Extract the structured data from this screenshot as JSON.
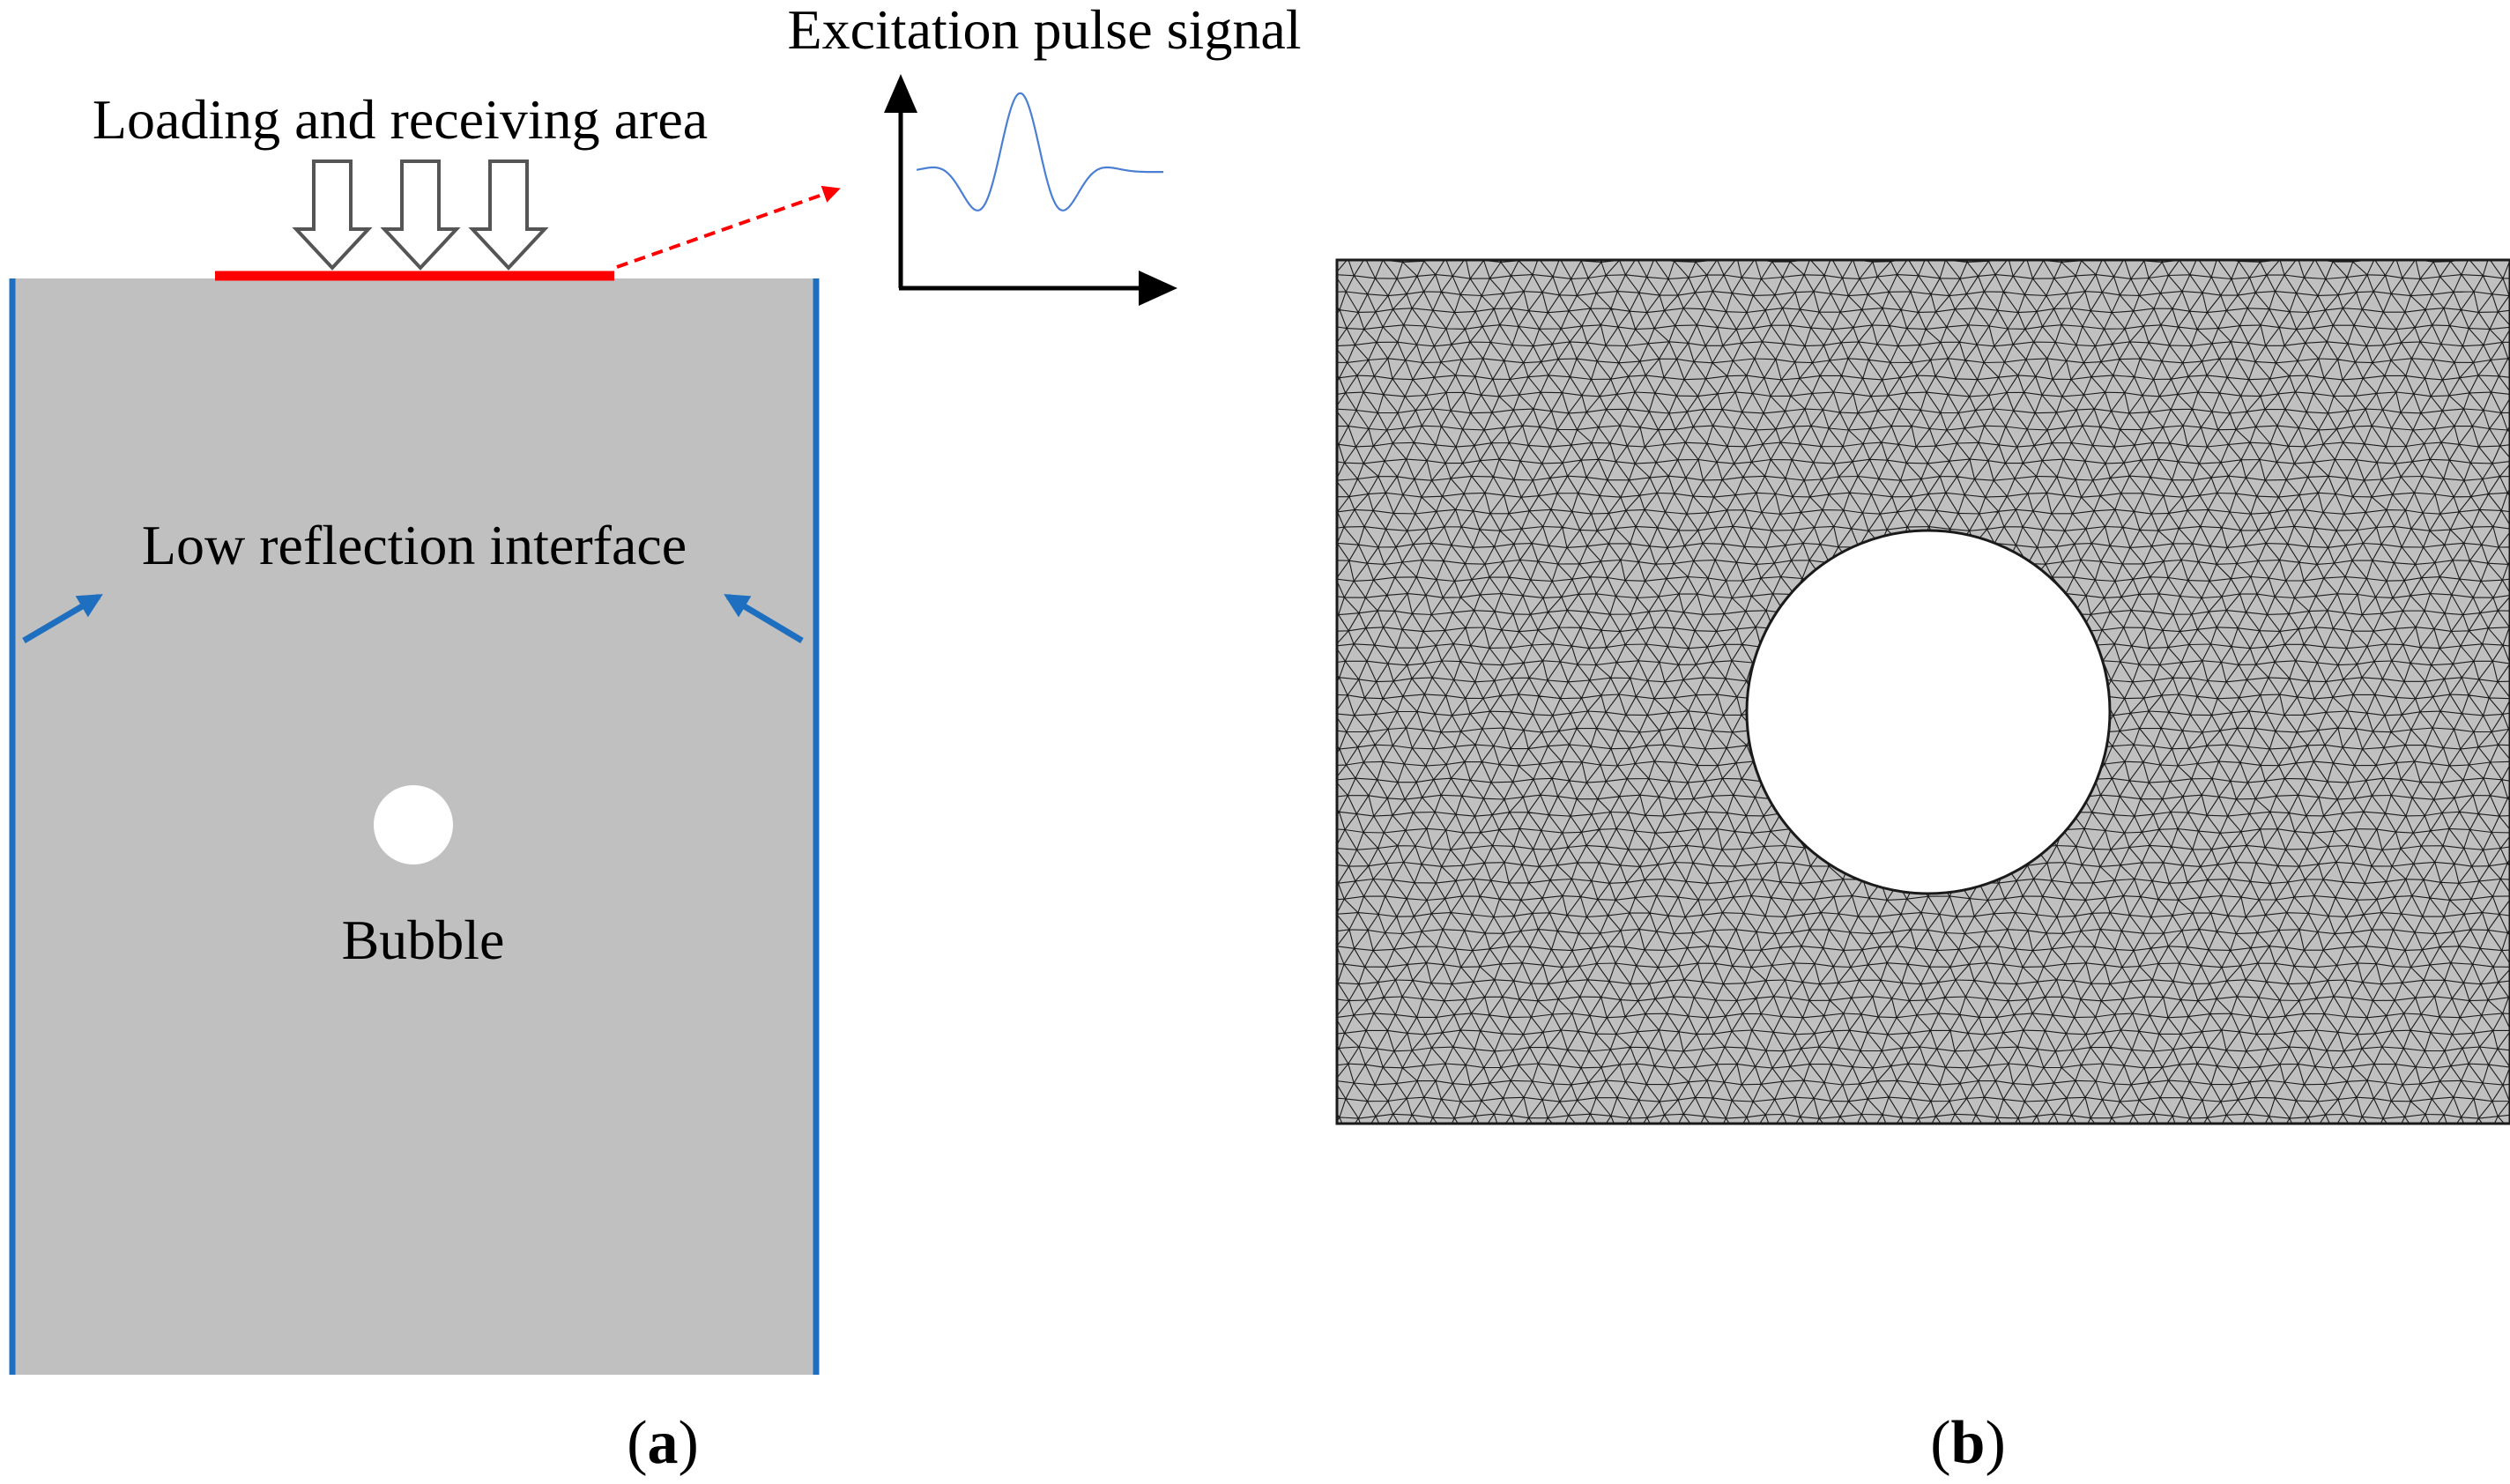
{
  "panel_a": {
    "loading_label": "Loading and receiving area",
    "excitation_label": "Excitation pulse signal",
    "interface_label": "Low reflection interface",
    "bubble_label": "Bubble",
    "caption_open": "(",
    "caption_letter": "a",
    "caption_close": ")"
  },
  "panel_b": {
    "caption_open": "(",
    "caption_letter": "b",
    "caption_close": ")"
  },
  "colors": {
    "domain_fill": "#c0c0c0",
    "boundary_blue": "#1f6fc0",
    "loading_red": "#ff0000",
    "signal_blue": "#4a7fd4",
    "mesh_line": "#1a1a1a",
    "bubble_fill": "#ffffff"
  }
}
